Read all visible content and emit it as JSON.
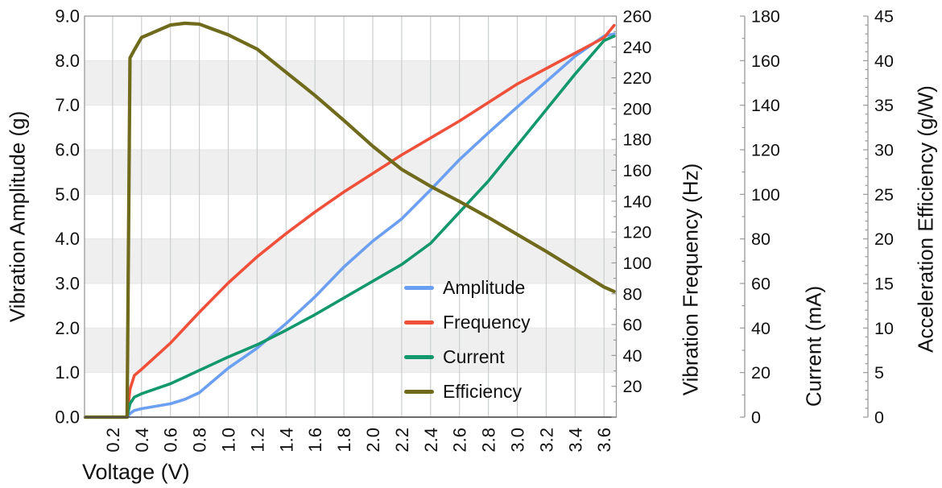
{
  "chart_data": {
    "type": "line",
    "x_label": "Voltage (V)",
    "x_range": [
      0.0,
      3.68
    ],
    "x_tick_start": 0.2,
    "x_tick_step": 0.2,
    "x_tick_end": 3.6,
    "x": [
      0.01,
      0.3,
      0.32,
      0.35,
      0.4,
      0.6,
      0.7,
      0.8,
      1.0,
      1.2,
      1.4,
      1.6,
      1.8,
      2.0,
      2.2,
      2.4,
      2.6,
      2.8,
      3.0,
      3.2,
      3.4,
      3.6,
      3.67
    ],
    "series": [
      {
        "name": "Amplitude",
        "axis": "amplitude",
        "color": "#6b9ff1",
        "width": 3.6,
        "values": [
          0,
          0,
          0.08,
          0.15,
          0.19,
          0.3,
          0.4,
          0.55,
          1.1,
          1.55,
          2.1,
          2.7,
          3.37,
          3.95,
          4.45,
          5.1,
          5.78,
          6.38,
          6.96,
          7.53,
          8.1,
          8.55,
          8.6
        ]
      },
      {
        "name": "Frequency",
        "axis": "frequency",
        "color": "#f0503a",
        "width": 3.6,
        "values": [
          0,
          0,
          18,
          27,
          31,
          48,
          58,
          68,
          87,
          104,
          119,
          133,
          146,
          158,
          170,
          181,
          192,
          204,
          216,
          226,
          236,
          246,
          254
        ]
      },
      {
        "name": "Current",
        "axis": "current",
        "color": "#13976d",
        "width": 3.6,
        "values": [
          0,
          0,
          6,
          9,
          10.5,
          15,
          18,
          21,
          27,
          32.5,
          39,
          46,
          53.5,
          61,
          68.5,
          78,
          92,
          106,
          122,
          138,
          154,
          169,
          171
        ]
      },
      {
        "name": "Efficiency",
        "axis": "efficiency",
        "color": "#6f6a1c",
        "width": 4.2,
        "values": [
          0,
          0,
          40.3,
          41.2,
          42.6,
          44.0,
          44.2,
          44.1,
          42.9,
          41.3,
          38.7,
          36.1,
          33.3,
          30.4,
          27.8,
          25.9,
          24.2,
          22.4,
          20.5,
          18.6,
          16.6,
          14.6,
          14.1
        ]
      }
    ],
    "axes": [
      {
        "id": "amplitude",
        "label": "Vibration Amplitude (g)",
        "range": [
          0,
          9
        ],
        "major": 1,
        "minor": 0.5,
        "decimals": 1,
        "side": "left"
      },
      {
        "id": "frequency",
        "label": "Vibration Frequency (Hz)",
        "range": [
          0,
          260
        ],
        "major": 20,
        "minor": 10,
        "decimals": 0,
        "side": "right",
        "hide_zero_label": true
      },
      {
        "id": "current",
        "label": "Current (mA)",
        "range": [
          0,
          180
        ],
        "major": 20,
        "minor": 10,
        "decimals": 0,
        "side": "right"
      },
      {
        "id": "efficiency",
        "label": "Acceleration Efficiency (g/W)",
        "range": [
          0,
          45
        ],
        "major": 5,
        "minor": 1,
        "decimals": 0,
        "side": "right"
      }
    ],
    "legend": [
      "Amplitude",
      "Frequency",
      "Current",
      "Efficiency"
    ],
    "colors": {
      "band": "#efefef",
      "vgrid": "#cbcfcc",
      "hgrid": "#e6e6e6",
      "frame": "#999999",
      "bottom_spine": "#444444",
      "text": "#111111"
    },
    "grid": true,
    "legend_position": "inside-right-lower"
  }
}
